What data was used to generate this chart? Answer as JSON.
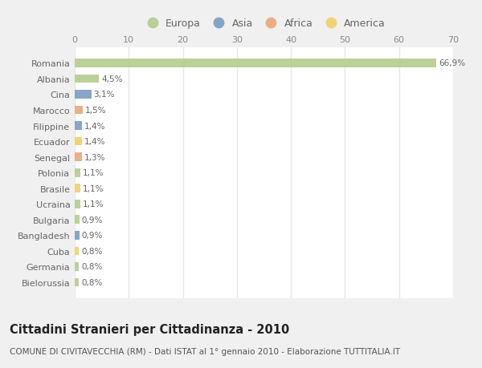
{
  "countries": [
    "Romania",
    "Albania",
    "Cina",
    "Marocco",
    "Filippine",
    "Ecuador",
    "Senegal",
    "Polonia",
    "Brasile",
    "Ucraina",
    "Bulgaria",
    "Bangladesh",
    "Cuba",
    "Germania",
    "Bielorussia"
  ],
  "values": [
    66.9,
    4.5,
    3.1,
    1.5,
    1.4,
    1.4,
    1.3,
    1.1,
    1.1,
    1.1,
    0.9,
    0.9,
    0.8,
    0.8,
    0.8
  ],
  "labels": [
    "66,9%",
    "4,5%",
    "3,1%",
    "1,5%",
    "1,4%",
    "1,4%",
    "1,3%",
    "1,1%",
    "1,1%",
    "1,1%",
    "0,9%",
    "0,9%",
    "0,8%",
    "0,8%",
    "0,8%"
  ],
  "continents": [
    "Europa",
    "Europa",
    "Asia",
    "Africa",
    "Asia",
    "America",
    "Africa",
    "Europa",
    "America",
    "Europa",
    "Europa",
    "Asia",
    "America",
    "Europa",
    "Europa"
  ],
  "continent_colors": {
    "Europa": "#b5cc8e",
    "Asia": "#7b9dc0",
    "Africa": "#e8a87c",
    "America": "#f0d06a"
  },
  "legend_order": [
    "Europa",
    "Asia",
    "Africa",
    "America"
  ],
  "xlim": [
    0,
    70
  ],
  "xticks": [
    0,
    10,
    20,
    30,
    40,
    50,
    60,
    70
  ],
  "title": "Cittadini Stranieri per Cittadinanza - 2010",
  "subtitle": "COMUNE DI CIVITAVECCHIA (RM) - Dati ISTAT al 1° gennaio 2010 - Elaborazione TUTTITALIA.IT",
  "bg_color": "#f0f0f0",
  "plot_bg_color": "#ffffff",
  "grid_color": "#e8e8e8",
  "title_fontsize": 10.5,
  "subtitle_fontsize": 7.5,
  "label_fontsize": 7.5,
  "tick_fontsize": 8,
  "legend_fontsize": 9
}
